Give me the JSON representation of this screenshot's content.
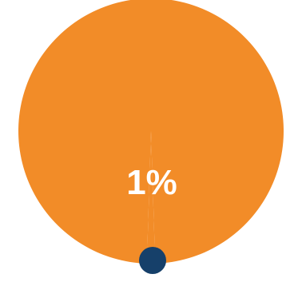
{
  "chart_data": {
    "type": "pie",
    "title": "",
    "categories": [
      "",
      ""
    ],
    "values": [
      99,
      1
    ],
    "colors": [
      "#f28c28",
      "#16406a"
    ],
    "data_labels": [
      "1%"
    ],
    "legend": "none"
  }
}
